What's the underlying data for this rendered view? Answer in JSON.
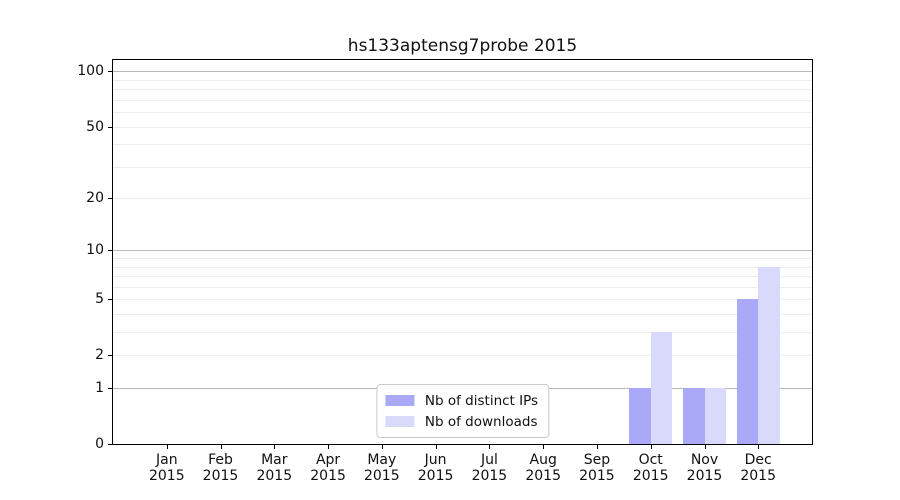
{
  "title": "hs133aptensg7probe 2015",
  "chart_data": {
    "type": "bar",
    "title": "hs133aptensg7probe 2015",
    "categories": [
      "Jan",
      "Feb",
      "Mar",
      "Apr",
      "May",
      "Jun",
      "Jul",
      "Aug",
      "Sep",
      "Oct",
      "Nov",
      "Dec"
    ],
    "xtick_year": "2015",
    "series": [
      {
        "name": "Nb of distinct IPs",
        "color": "#a9a9f7",
        "values": [
          0,
          0,
          0,
          0,
          0,
          0,
          0,
          0,
          0,
          1,
          1,
          5
        ]
      },
      {
        "name": "Nb of downloads",
        "color": "#d9d9fb",
        "values": [
          0,
          0,
          0,
          0,
          0,
          0,
          0,
          0,
          0,
          3,
          1,
          8
        ]
      }
    ],
    "yscale": "log1p",
    "ylim": [
      0,
      115.3
    ],
    "ytick_values": [
      0,
      1,
      2,
      5,
      10,
      20,
      50,
      100
    ],
    "ytick_labels": [
      "0",
      "1",
      "2",
      "5",
      "10",
      "20",
      "50",
      "100"
    ],
    "major_grid_values": [
      1,
      10,
      100
    ],
    "minor_grid_values": [
      2,
      3,
      4,
      5,
      6,
      7,
      8,
      9,
      20,
      30,
      40,
      50,
      60,
      70,
      80,
      90
    ],
    "grid": true,
    "legend_position": "lower center",
    "bar_width_fraction": 0.4,
    "xlabel": "",
    "ylabel": ""
  }
}
